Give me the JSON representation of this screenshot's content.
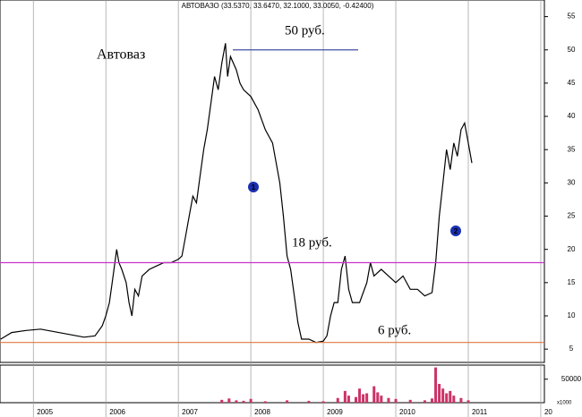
{
  "chart_data": [
    {
      "type": "line",
      "title": "АВТОВАЗО (33.5370, 33.6470, 32.1000, 33.0050, -0.42400)",
      "annotations": [
        "Автоваз"
      ],
      "markers": [
        "1",
        "2"
      ],
      "x": [
        2004.55,
        2004.7,
        2004.9,
        2005.1,
        2005.3,
        2005.5,
        2005.7,
        2005.85,
        2005.95,
        2006.0,
        2006.05,
        2006.1,
        2006.15,
        2006.18,
        2006.22,
        2006.28,
        2006.32,
        2006.36,
        2006.4,
        2006.45,
        2006.5,
        2006.6,
        2006.7,
        2006.8,
        2006.9,
        2007.0,
        2007.05,
        2007.1,
        2007.15,
        2007.2,
        2007.25,
        2007.3,
        2007.35,
        2007.4,
        2007.45,
        2007.5,
        2007.55,
        2007.6,
        2007.65,
        2007.68,
        2007.72,
        2007.8,
        2007.85,
        2007.9,
        2008.0,
        2008.1,
        2008.2,
        2008.3,
        2008.4,
        2008.45,
        2008.5,
        2008.55,
        2008.6,
        2008.65,
        2008.7,
        2008.8,
        2008.9,
        2009.0,
        2009.05,
        2009.1,
        2009.15,
        2009.2,
        2009.25,
        2009.3,
        2009.35,
        2009.4,
        2009.5,
        2009.6,
        2009.65,
        2009.7,
        2009.8,
        2009.9,
        2010.0,
        2010.1,
        2010.2,
        2010.3,
        2010.4,
        2010.5,
        2010.55,
        2010.6,
        2010.65,
        2010.7,
        2010.75,
        2010.8,
        2010.85,
        2010.9,
        2010.95,
        2011.0,
        2011.05
      ],
      "values": [
        6.5,
        7.5,
        7.8,
        8.0,
        7.6,
        7.2,
        6.8,
        7.0,
        8.5,
        10,
        12,
        16,
        20,
        18,
        17,
        15,
        12,
        10,
        14,
        13,
        16,
        17,
        17.5,
        18,
        18,
        18.5,
        19,
        22,
        25,
        28,
        27,
        31,
        35,
        38,
        42,
        46,
        44,
        48,
        51,
        46,
        49,
        47,
        45,
        44,
        43,
        41,
        38,
        36,
        30,
        25,
        19,
        17,
        13,
        9,
        6.5,
        6.5,
        6.0,
        6.2,
        7,
        10,
        12,
        12,
        17,
        19,
        14,
        12,
        12,
        15,
        18,
        16,
        17,
        16,
        15,
        16,
        14,
        14,
        13,
        13.5,
        18,
        25,
        30,
        35,
        32,
        36,
        34,
        38,
        39,
        36,
        33
      ],
      "color": "#000000",
      "xlim": [
        2004.54,
        2012.05
      ],
      "ylim": [
        3,
        57.5
      ],
      "yticks": [
        5,
        10,
        15,
        20,
        25,
        30,
        35,
        40,
        45,
        50,
        55
      ],
      "xticks": [
        2005,
        2006,
        2007,
        2008,
        2009,
        2010,
        2011,
        {
          "value": 2012,
          "label": "20"
        }
      ],
      "levels": [
        {
          "value": 50,
          "label": "50 руб.",
          "color": "#4050a0"
        },
        {
          "value": 18,
          "label": "18 руб.",
          "color": "#cc33cc"
        },
        {
          "value": 6,
          "label": "6 руб.",
          "color": "#e07840"
        }
      ]
    },
    {
      "type": "bar",
      "ylabel": "x1000",
      "x": [
        2007.6,
        2007.7,
        2007.8,
        2007.9,
        2008.0,
        2008.2,
        2008.5,
        2008.8,
        2009.0,
        2009.2,
        2009.3,
        2009.35,
        2009.45,
        2009.5,
        2009.55,
        2009.6,
        2009.7,
        2009.75,
        2009.8,
        2009.9,
        2010.0,
        2010.2,
        2010.4,
        2010.5,
        2010.55,
        2010.6,
        2010.65,
        2010.7,
        2010.75,
        2010.8,
        2010.9,
        2011.0
      ],
      "values": [
        6000,
        9000,
        5000,
        4000,
        8000,
        3000,
        5000,
        4000,
        3000,
        10000,
        25000,
        15000,
        12000,
        30000,
        18000,
        20000,
        35000,
        22000,
        15000,
        10000,
        8000,
        6000,
        5000,
        9000,
        75000,
        40000,
        30000,
        20000,
        25000,
        15000,
        10000,
        5000
      ],
      "color": "#cc3366",
      "ylim": [
        0,
        80000
      ],
      "yticks": [
        50000
      ]
    }
  ]
}
